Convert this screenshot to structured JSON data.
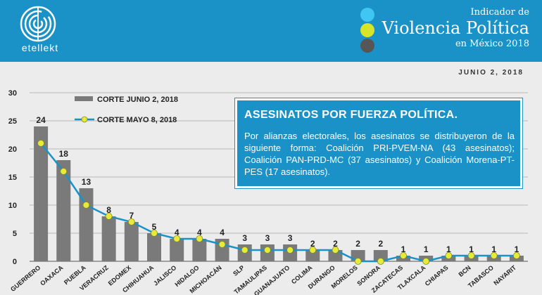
{
  "header": {
    "logo_text": "etellekt",
    "indicator_line1": "Indicador de",
    "indicator_line2": "Violencia Política",
    "indicator_line3": "en México 2018",
    "dot_colors": [
      "#3fc6f2",
      "#d6e52a",
      "#565656"
    ]
  },
  "date": "JUNIO 2, 2018",
  "info_box": {
    "title": "ASESINATOS POR FUERZA POLÍTICA.",
    "text": "Por alianzas electorales, los asesinatos se distribuyeron de la siguiente forma: Coalición PRI-PVEM-NA (43 asesinatos); Coalición PAN-PRD-MC (37 asesinatos) y Coalición Morena-PT-PES (17 asesinatos)."
  },
  "colors": {
    "bar": "#7a7a7a",
    "line": "#1a92c8",
    "marker": "#e6ea3a",
    "grid": "#b8b8b8"
  },
  "chart_data": {
    "type": "bar",
    "title": "",
    "xlabel": "",
    "ylabel": "",
    "ylim": [
      0,
      30
    ],
    "yticks": [
      0,
      5,
      10,
      15,
      20,
      25,
      30
    ],
    "grid": true,
    "legend_position": "top-left",
    "categories": [
      "GUERRERO",
      "OAXACA",
      "PUEBLA",
      "VERACRUZ",
      "EDOMEX",
      "CHIHUAHUA",
      "JALISCO",
      "HIDALGO",
      "MICHOACÁN",
      "SLP",
      "TAMAULIPAS",
      "GUANAJUATO",
      "COLIMA",
      "DURANGO",
      "MORELOS",
      "SONORA",
      "ZACATECAS",
      "TLAXCALA",
      "CHIAPAS",
      "BCN",
      "TABASCO",
      "NAYARIT"
    ],
    "series": [
      {
        "name": "CORTE JUNIO 2, 2018",
        "kind": "bar",
        "values": [
          24,
          18,
          13,
          8,
          7,
          5,
          4,
          4,
          4,
          3,
          3,
          3,
          2,
          2,
          2,
          2,
          1,
          1,
          1,
          1,
          1,
          1
        ]
      },
      {
        "name": "CORTE MAYO 8, 2018",
        "kind": "line",
        "values": [
          21,
          16,
          10,
          8,
          7,
          5,
          4,
          4,
          3,
          2,
          2,
          2,
          2,
          2,
          0,
          0,
          1,
          0,
          1,
          1,
          1,
          1
        ]
      }
    ]
  }
}
